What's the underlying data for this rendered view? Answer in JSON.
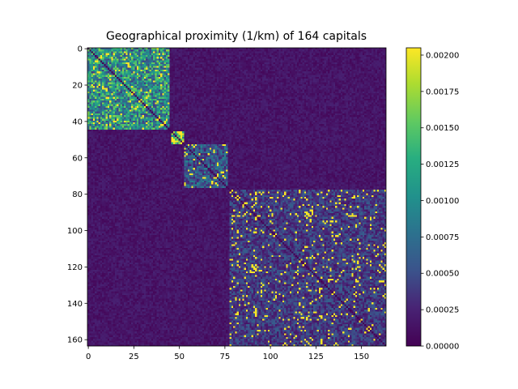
{
  "chart_data": {
    "type": "heatmap",
    "title": "Geographical proximity (1/km) of 164 capitals",
    "n": 164,
    "x_ticks": [
      0,
      25,
      50,
      75,
      100,
      125,
      150
    ],
    "x_tick_labels": [
      "0",
      "25",
      "50",
      "75",
      "100",
      "125",
      "150"
    ],
    "y_ticks": [
      0,
      20,
      40,
      60,
      80,
      100,
      120,
      140,
      160
    ],
    "y_tick_labels": [
      "0",
      "20",
      "40",
      "60",
      "80",
      "100",
      "120",
      "140",
      "160"
    ],
    "xlim": [
      -0.5,
      163.5
    ],
    "ylim": [
      163.5,
      -0.5
    ],
    "colorbar": {
      "colormap": "viridis",
      "vmin": 0.0,
      "vmax": 0.00205,
      "ticks": [
        0.0,
        0.00025,
        0.0005,
        0.00075,
        0.001,
        0.00125,
        0.0015,
        0.00175,
        0.002
      ],
      "tick_labels": [
        "0.00000",
        "0.00025",
        "0.00050",
        "0.00075",
        "0.00100",
        "0.00125",
        "0.00150",
        "0.00175",
        "0.00200"
      ]
    },
    "clusters": [
      {
        "start": 0,
        "end": 44,
        "level": 0.0011
      },
      {
        "start": 46,
        "end": 52,
        "level": 0.002
      },
      {
        "start": 53,
        "end": 76,
        "level": 0.0006
      },
      {
        "start": 78,
        "end": 163,
        "level": 0.0004
      }
    ],
    "background_level": 0.00015
  }
}
